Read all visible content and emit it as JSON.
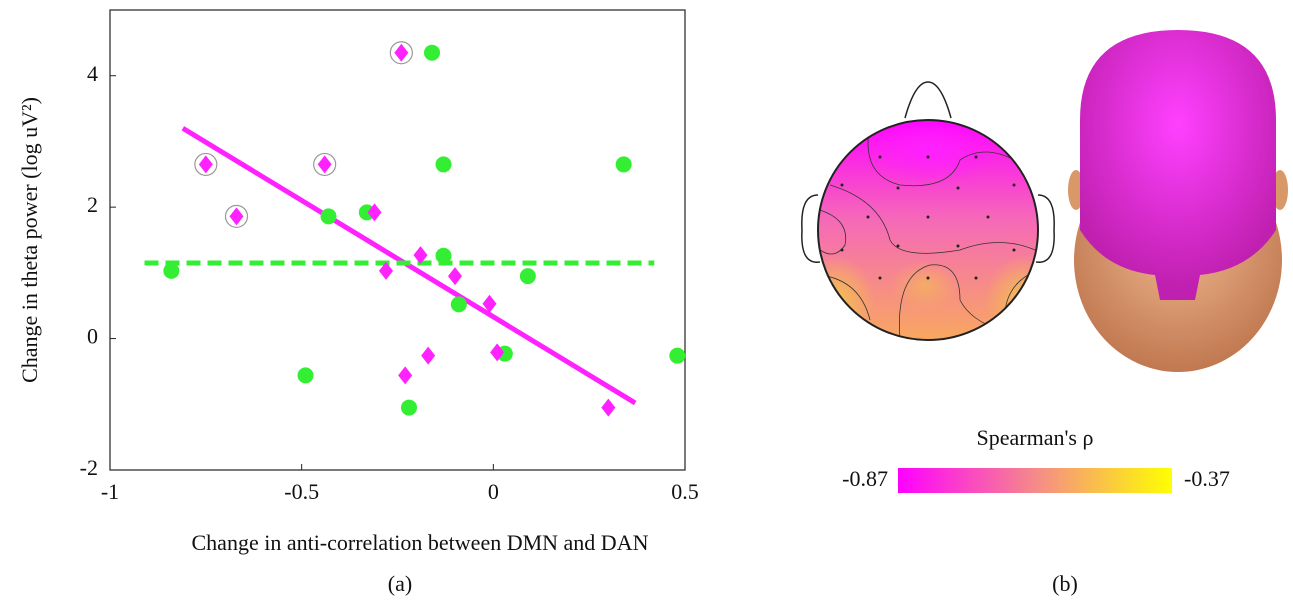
{
  "chart_data": [
    {
      "type": "scatter",
      "xlabel": "Change in anti-correlation between DMN and DAN",
      "ylabel": "Change in theta power (log uV²)",
      "xlim": [
        -1,
        0.5
      ],
      "ylim": [
        -2,
        5
      ],
      "xticks": [
        -1,
        -0.5,
        0,
        0.5
      ],
      "yticks": [
        -2,
        0,
        2,
        4
      ],
      "series": [
        {
          "color": "#33ee33",
          "marker": "circle",
          "x": [
            -0.84,
            -0.49,
            -0.43,
            -0.33,
            -0.22,
            -0.16,
            -0.13,
            -0.13,
            -0.09,
            0.03,
            0.09,
            0.34,
            0.48
          ],
          "values": [
            1.03,
            -0.56,
            1.86,
            1.92,
            -1.05,
            4.35,
            2.65,
            1.26,
            0.52,
            -0.23,
            0.95,
            2.65,
            -0.26
          ]
        },
        {
          "color": "#ff22ff",
          "marker": "diamond",
          "x": [
            -0.75,
            -0.67,
            -0.44,
            -0.24,
            -0.31,
            -0.28,
            -0.23,
            -0.19,
            -0.17,
            -0.1,
            -0.01,
            0.01,
            0.3
          ],
          "values": [
            2.65,
            1.86,
            2.65,
            4.35,
            1.92,
            1.03,
            -0.56,
            1.27,
            -0.26,
            0.95,
            0.53,
            -0.21,
            -1.05
          ],
          "circled": [
            true,
            true,
            true,
            true,
            false,
            false,
            false,
            false,
            false,
            false,
            false,
            false,
            false
          ]
        }
      ],
      "lines": [
        {
          "color": "#ff22ff",
          "dash": false,
          "x": [
            -0.81,
            0.37
          ],
          "values": [
            3.2,
            -0.98
          ]
        },
        {
          "color": "#33ee33",
          "dash": true,
          "x": [
            -0.91,
            0.42
          ],
          "values": [
            1.15,
            1.15
          ]
        }
      ],
      "panel_label": "(a)"
    },
    {
      "type": "topomap",
      "colorbar_label": "Spearman's ρ",
      "clim": [
        -0.87,
        -0.37
      ],
      "colors": [
        "#ff00ff",
        "#f58a8a",
        "#ffff00"
      ],
      "panel_label": "(b)"
    }
  ]
}
